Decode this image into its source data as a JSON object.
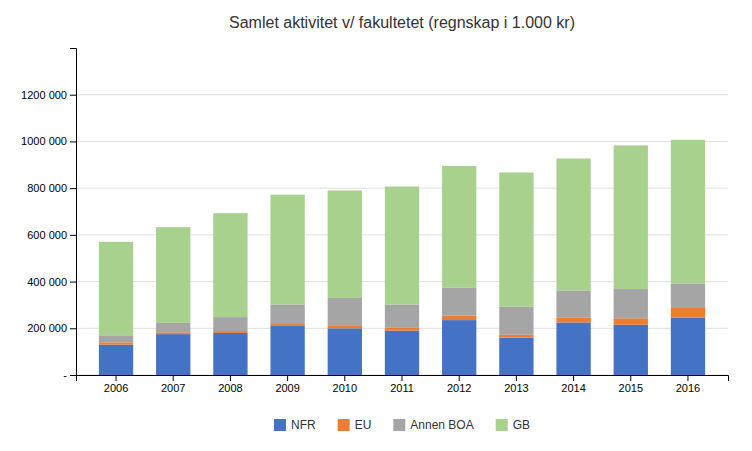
{
  "chart_data": {
    "type": "bar",
    "title": "Samlet aktivitet v/ fakultetet (regnskap i 1.000 kr)",
    "categories": [
      "2006",
      "2007",
      "2008",
      "2009",
      "2010",
      "2011",
      "2012",
      "2013",
      "2014",
      "2015",
      "2016"
    ],
    "series": [
      {
        "name": "NFR",
        "color": "#4472C4",
        "values": [
          130000,
          175000,
          180000,
          210000,
          200000,
          190000,
          235000,
          160000,
          225000,
          215000,
          245000
        ]
      },
      {
        "name": "EU",
        "color": "#ED7D31",
        "values": [
          10000,
          8000,
          8000,
          12000,
          10000,
          12000,
          20000,
          12000,
          22000,
          28000,
          42000
        ]
      },
      {
        "name": "Annen BOA",
        "color": "#A5A5A5",
        "values": [
          30000,
          40000,
          60000,
          80000,
          120000,
          100000,
          120000,
          120000,
          115000,
          125000,
          105000
        ]
      },
      {
        "name": "GB",
        "color": "#A9D18E",
        "values": [
          400000,
          410000,
          445000,
          470000,
          460000,
          505000,
          520000,
          575000,
          565000,
          615000,
          615000
        ]
      }
    ],
    "ylim": [
      0,
      1400000
    ],
    "yticks": [
      {
        "value": 0,
        "label": "-"
      },
      {
        "value": 200000,
        "label": "200 000"
      },
      {
        "value": 400000,
        "label": "400 000"
      },
      {
        "value": 600000,
        "label": "600 000"
      },
      {
        "value": 800000,
        "label": "800 000"
      },
      {
        "value": 1000000,
        "label": "1000 000"
      },
      {
        "value": 1200000,
        "label": "1200 000"
      }
    ],
    "stacked": true,
    "grid": true,
    "legend": "bottom"
  }
}
